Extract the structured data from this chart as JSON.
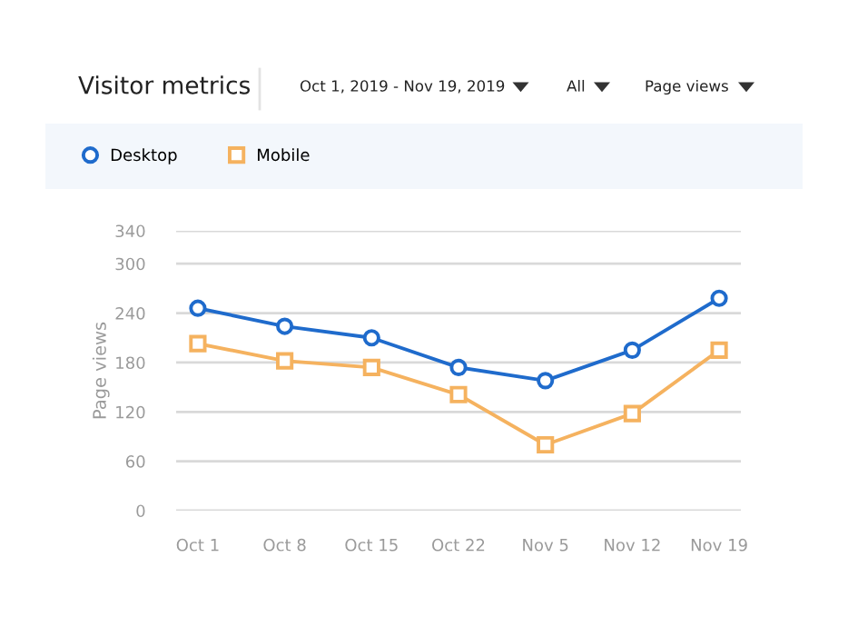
{
  "chart_data": {
    "type": "line",
    "title": "Visitor metrics",
    "annotations": [
      "Oct 1, 2019 - Nov 19, 2019",
      "All",
      "Page views"
    ],
    "ylabel": "Page views",
    "categories": [
      "Oct 1",
      "Oct 8",
      "Oct 15",
      "Oct 22",
      "Nov 5",
      "Nov 12",
      "Nov 19"
    ],
    "series": [
      {
        "name": "Desktop",
        "color": "#1f6bcc",
        "marker": "circle",
        "values": [
          246,
          224,
          210,
          174,
          158,
          195,
          258
        ]
      },
      {
        "name": "Mobile",
        "color": "#f5b25f",
        "marker": "square",
        "values": [
          203,
          182,
          174,
          141,
          80,
          118,
          195
        ]
      }
    ],
    "ylim": [
      0,
      340
    ],
    "yticks": [
      0,
      60,
      120,
      180,
      240,
      300,
      340
    ],
    "grid": "y",
    "legend": "top",
    "line_style": "solid"
  }
}
